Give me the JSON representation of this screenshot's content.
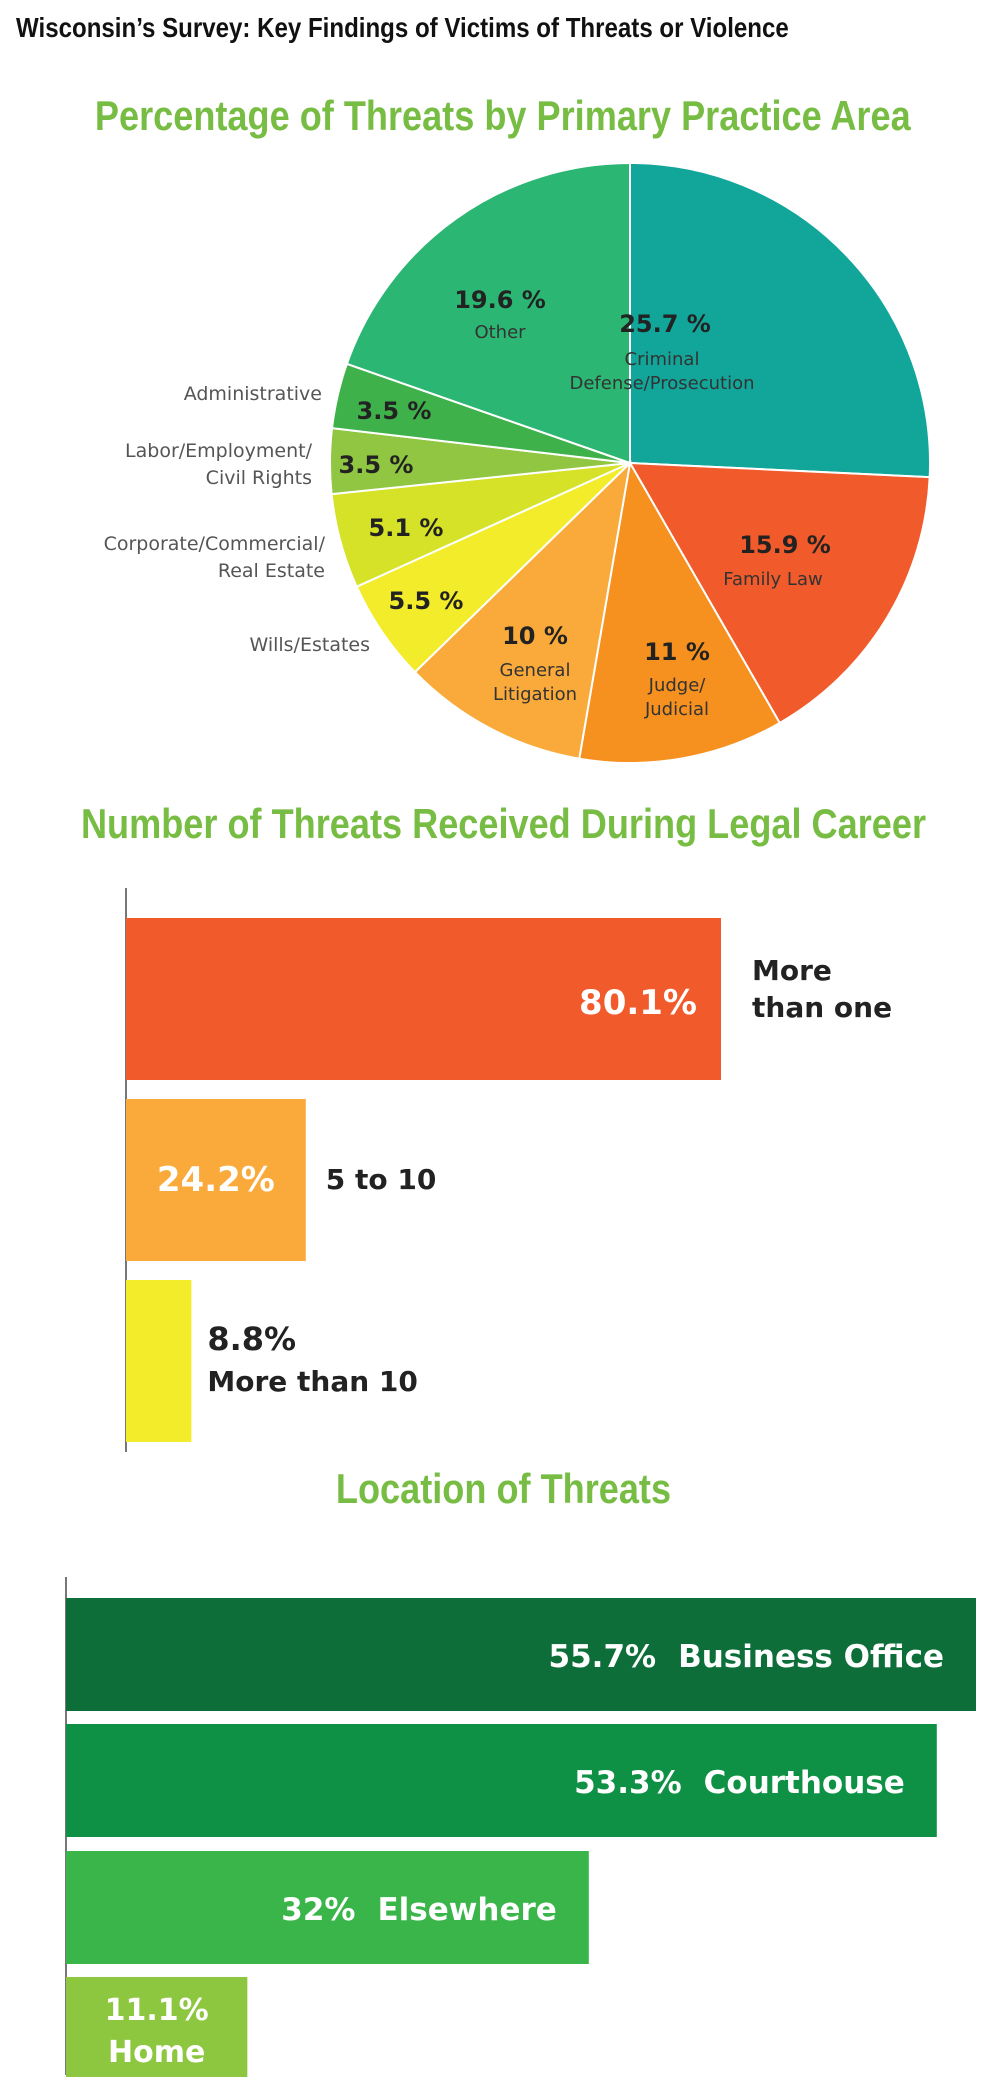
{
  "page_title": "Wisconsin’s Survey: Key Findings of Victims of Threats or Violence",
  "chart_data": [
    {
      "type": "pie",
      "title": "Percentage of Threats by Primary Practice Area",
      "slices": [
        {
          "value_label": "25.7 %",
          "value": 25.7,
          "name": [
            "Criminal",
            "Defense/Prosecution"
          ],
          "color": "#12a69a"
        },
        {
          "value_label": "15.9 %",
          "value": 15.9,
          "name": [
            "Family Law"
          ],
          "color": "#f15a2b"
        },
        {
          "value_label": "11 %",
          "value": 11,
          "name": [
            "Judge/",
            "Judicial"
          ],
          "color": "#f6901e"
        },
        {
          "value_label": "10 %",
          "value": 10,
          "name": [
            "General",
            "Litigation"
          ],
          "color": "#faaa3a"
        },
        {
          "value_label": "5.5 %",
          "value": 5.5,
          "name": [
            "Wills/Estates"
          ],
          "color": "#f3ec2a"
        },
        {
          "value_label": "5.1 %",
          "value": 5.1,
          "name": [
            "Corporate/Commercial/",
            "Real Estate"
          ],
          "color": "#d6e228"
        },
        {
          "value_label": "3.5 %",
          "value": 3.5,
          "name": [
            "Labor/Employment/",
            "Civil Rights"
          ],
          "color": "#90c641"
        },
        {
          "value_label": "3.5 %",
          "value": 3.5,
          "name": [
            "Administrative"
          ],
          "color": "#3fb14a"
        },
        {
          "value_label": "19.6 %",
          "value": 19.6,
          "name": [
            "Other"
          ],
          "color": "#2bb673"
        }
      ]
    },
    {
      "type": "bar",
      "orientation": "horizontal",
      "title": "Number of Threats Received During Legal Career",
      "bars": [
        {
          "value_label": "80.1%",
          "value": 80.1,
          "name": [
            "More",
            "than one"
          ],
          "color": "#f15a2b"
        },
        {
          "value_label": "24.2%",
          "value": 24.2,
          "name": [
            "5 to 10"
          ],
          "color": "#faaa3a"
        },
        {
          "value_label": "8.8%",
          "value": 8.8,
          "name": [
            "More than 10"
          ],
          "color": "#f3ec2a"
        }
      ]
    },
    {
      "type": "bar",
      "orientation": "horizontal",
      "title": "Location of Threats",
      "bars": [
        {
          "value_label": "55.7%",
          "value": 55.7,
          "name": "Business Office",
          "color": "#0d6e3a"
        },
        {
          "value_label": "53.3%",
          "value": 53.3,
          "name": "Courthouse",
          "color": "#0f9145"
        },
        {
          "value_label": "32%",
          "value": 32,
          "name": "Elsewhere",
          "color": "#39b54a"
        },
        {
          "value_label": "11.1%",
          "value": 11.1,
          "name": "Home",
          "color": "#8dc63f"
        }
      ]
    }
  ]
}
